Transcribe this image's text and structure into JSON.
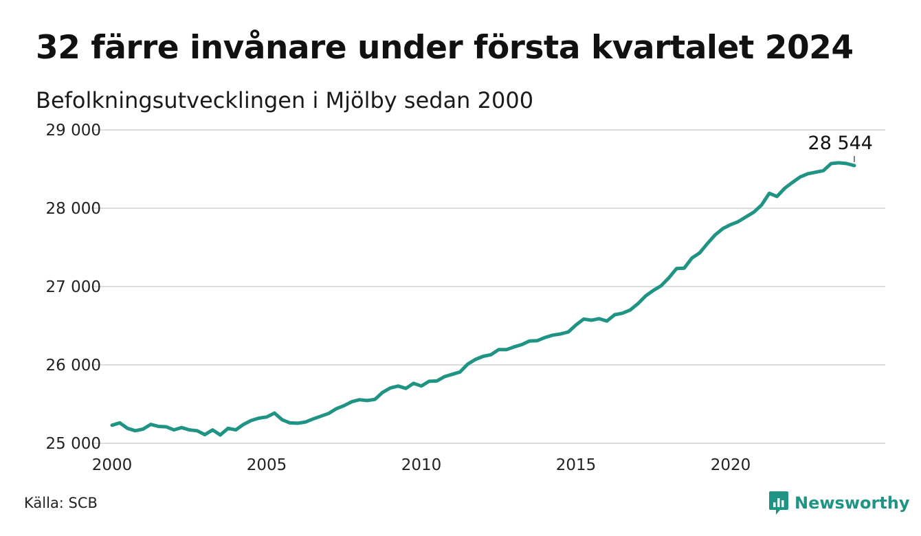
{
  "title": "32 färre invånare under första kvartalet 2024",
  "subtitle": "Befolkningsutvecklingen i Mjölby sedan 2000",
  "source": "Källa: SCB",
  "brand": {
    "name": "Newsworthy",
    "color": "#1f9485",
    "icon": "bar-chart-bubble-icon"
  },
  "chart_data": {
    "type": "line",
    "title": "32 färre invånare under första kvartalet 2024",
    "subtitle": "Befolkningsutvecklingen i Mjölby sedan 2000",
    "xlabel": "",
    "ylabel": "",
    "xlim": [
      2000,
      2025
    ],
    "ylim": [
      25000,
      29000
    ],
    "grid": true,
    "line_color": "#1f9485",
    "x_ticks": [
      {
        "value": 2000,
        "label": "2000"
      },
      {
        "value": 2005,
        "label": "2005"
      },
      {
        "value": 2010,
        "label": "2010"
      },
      {
        "value": 2015,
        "label": "2015"
      },
      {
        "value": 2020,
        "label": "2020"
      }
    ],
    "y_ticks": [
      {
        "value": 25000,
        "label": "25 000"
      },
      {
        "value": 26000,
        "label": "26 000"
      },
      {
        "value": 27000,
        "label": "27 000"
      },
      {
        "value": 28000,
        "label": "28 000"
      },
      {
        "value": 29000,
        "label": "29 000"
      }
    ],
    "annotation": {
      "x": 2024.0,
      "y": 28544,
      "label": "28 544"
    },
    "series": [
      {
        "x": [
          2000.0,
          2000.25,
          2000.5,
          2000.75,
          2001.0,
          2001.25,
          2001.5,
          2001.75,
          2002.0,
          2002.25,
          2002.5,
          2002.75,
          2003.0,
          2003.25,
          2003.5,
          2003.75,
          2004.0,
          2004.25,
          2004.5,
          2004.75,
          2005.0,
          2005.25,
          2005.5,
          2005.75,
          2006.0,
          2006.25,
          2006.5,
          2006.75,
          2007.0,
          2007.25,
          2007.5,
          2007.75,
          2008.0,
          2008.25,
          2008.5,
          2008.75,
          2009.0,
          2009.25,
          2009.5,
          2009.75,
          2010.0,
          2010.25,
          2010.5,
          2010.75,
          2011.0,
          2011.25,
          2011.5,
          2011.75,
          2012.0,
          2012.25,
          2012.5,
          2012.75,
          2013.0,
          2013.25,
          2013.5,
          2013.75,
          2014.0,
          2014.25,
          2014.5,
          2014.75,
          2015.0,
          2015.25,
          2015.5,
          2015.75,
          2016.0,
          2016.25,
          2016.5,
          2016.75,
          2017.0,
          2017.25,
          2017.5,
          2017.75,
          2018.0,
          2018.25,
          2018.5,
          2018.75,
          2019.0,
          2019.25,
          2019.5,
          2019.75,
          2020.0,
          2020.25,
          2020.5,
          2020.75,
          2021.0,
          2021.25,
          2021.5,
          2021.75,
          2022.0,
          2022.25,
          2022.5,
          2022.75,
          2023.0,
          2023.25,
          2023.5,
          2023.75,
          2024.0
        ],
        "y": [
          25230,
          25260,
          25190,
          25160,
          25180,
          25240,
          25215,
          25210,
          25170,
          25200,
          25170,
          25160,
          25110,
          25170,
          25105,
          25190,
          25170,
          25240,
          25290,
          25320,
          25335,
          25385,
          25300,
          25260,
          25255,
          25270,
          25310,
          25345,
          25380,
          25440,
          25480,
          25530,
          25555,
          25545,
          25560,
          25650,
          25705,
          25730,
          25700,
          25765,
          25730,
          25790,
          25795,
          25850,
          25880,
          25910,
          26010,
          26070,
          26110,
          26130,
          26195,
          26195,
          26230,
          26260,
          26305,
          26310,
          26350,
          26380,
          26395,
          26420,
          26510,
          26585,
          26570,
          26590,
          26560,
          26640,
          26660,
          26700,
          26780,
          26880,
          26950,
          27010,
          27110,
          27230,
          27235,
          27365,
          27430,
          27550,
          27660,
          27740,
          27790,
          27830,
          27890,
          27950,
          28040,
          28190,
          28150,
          28255,
          28330,
          28400,
          28440,
          28460,
          28480,
          28570,
          28580,
          28570,
          28544
        ]
      }
    ]
  }
}
